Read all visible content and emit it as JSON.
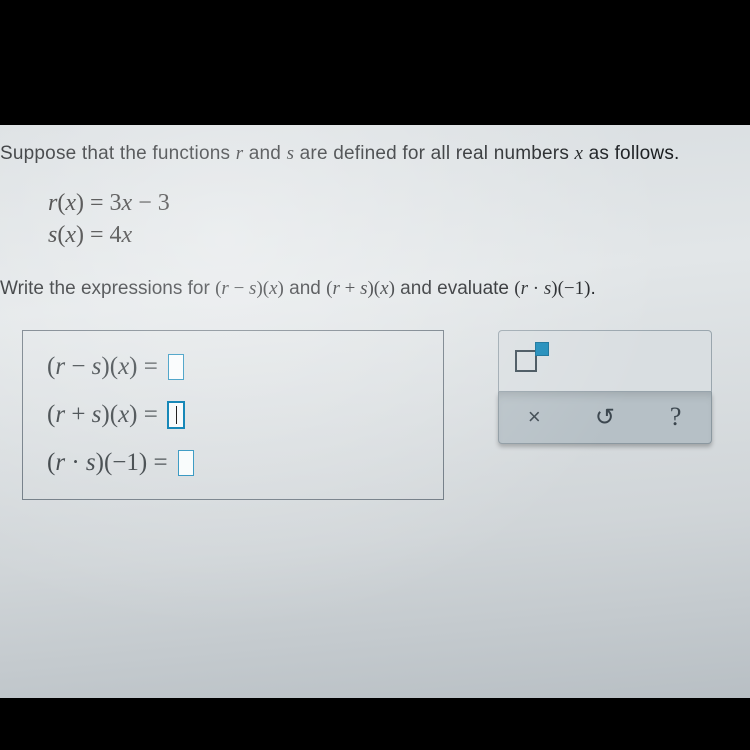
{
  "prompt": {
    "line1_pre": "Suppose that the functions ",
    "var_r": "r",
    "line1_mid": " and ",
    "var_s": "s",
    "line1_post": " are defined for all real numbers ",
    "var_x": "x",
    "line1_end": " as follows."
  },
  "definitions": {
    "r_lhs_func": "r",
    "r_lhs_arg": "x",
    "r_rhs": "3x − 3",
    "s_lhs_func": "s",
    "s_lhs_arg": "x",
    "s_rhs": "4x",
    "eq": " = ",
    "r_rhs_num1": "3",
    "r_rhs_minus": " − ",
    "r_rhs_num2": "3",
    "s_rhs_num": "4"
  },
  "task": {
    "pre": "Write the expressions for ",
    "expr1_l": "(r − s)",
    "expr1_r": "(x)",
    "mid1": " and ",
    "expr2_l": "(r + s)",
    "expr2_r": "(x)",
    "mid2": " and evaluate ",
    "expr3_l": "(r · s)",
    "expr3_r": "(−1)",
    "end": "."
  },
  "answers": {
    "row1_l": "(r − s)",
    "row1_r": "(x)",
    "row2_l": "(r + s)",
    "row2_r": "(x)",
    "row3_l": "(r · s)",
    "row3_r": "(−1)",
    "eq": " = ",
    "blank_color": "#1788b8"
  },
  "palette": {
    "close": "×",
    "reset": "↺",
    "help": "?"
  },
  "colors": {
    "bg_top": "#000000",
    "content_bg": "#dde1e3",
    "border": "#6b7680",
    "accent": "#1788b8",
    "pal_top": "#d9dee1",
    "pal_bot": "#b6c0c6",
    "text": "#1a1d20"
  }
}
